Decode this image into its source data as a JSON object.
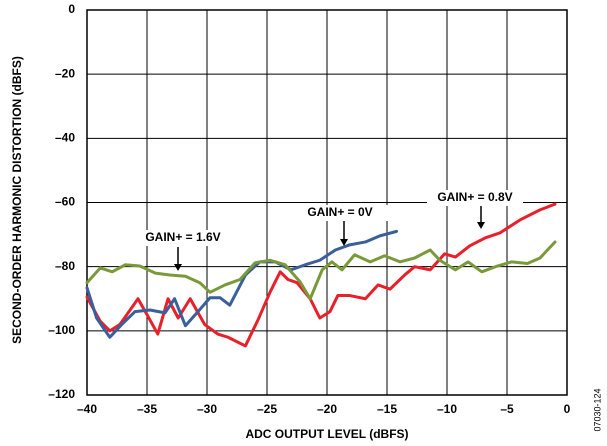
{
  "chart_data": {
    "type": "line",
    "x_label": "ADC OUTPUT LEVEL (dBFS)",
    "y_label": "SECOND-ORDER HARMONIC DISTORTION (dBFS)",
    "figure_id": "07030-124",
    "xlim": [
      -40,
      0
    ],
    "ylim": [
      -120,
      0
    ],
    "xticks": [
      {
        "value": -40,
        "label": "–40"
      },
      {
        "value": -35,
        "label": "–35"
      },
      {
        "value": -30,
        "label": "–30"
      },
      {
        "value": -25,
        "label": "–25"
      },
      {
        "value": -20,
        "label": "–20"
      },
      {
        "value": -15,
        "label": "–15"
      },
      {
        "value": -10,
        "label": "–10"
      },
      {
        "value": -5,
        "label": "–5"
      },
      0
    ],
    "yticks": [
      0,
      {
        "value": -20,
        "label": "–20"
      },
      {
        "value": -40,
        "label": "–40"
      },
      {
        "value": -60,
        "label": "–60"
      },
      {
        "value": -80,
        "label": "–80"
      },
      {
        "value": -100,
        "label": "–100"
      },
      {
        "value": -120,
        "label": "–120"
      }
    ],
    "grid": true,
    "series": [
      {
        "name": "GAIN+ = 0.8V",
        "color": "#e8202a",
        "x": [
          -40,
          -38.9,
          -38.1,
          -37.25,
          -35.75,
          -34.9,
          -34.1,
          -33.25,
          -32.4,
          -31.4,
          -30.2,
          -29.1,
          -28.25,
          -26.8,
          -25.75,
          -24.75,
          -23.9,
          -23.25,
          -22.5,
          -21.4,
          -20.6,
          -19.75,
          -19.1,
          -18.1,
          -16.8,
          -15.75,
          -14.75,
          -13.5,
          -12.7,
          -11.4,
          -10.2,
          -9.3,
          -8.1,
          -6.8,
          -5.6,
          -3.9,
          -2.25,
          -1
        ],
        "values": [
          -89.5,
          -97,
          -100,
          -98,
          -90,
          -95.6,
          -101,
          -90,
          -96,
          -90,
          -98,
          -101,
          -102,
          -104.7,
          -96.6,
          -88,
          -81.6,
          -84,
          -85,
          -90,
          -96,
          -94,
          -89,
          -89,
          -90,
          -85.7,
          -87,
          -82.5,
          -80,
          -81,
          -76,
          -77,
          -73.5,
          -71,
          -69.5,
          -65.4,
          -62.3,
          -60.5
        ]
      },
      {
        "name": "GAIN+ = 0V",
        "color": "#3a5f9a",
        "x": [
          -40,
          -39.2,
          -38.1,
          -37.1,
          -36,
          -34.75,
          -33.5,
          -32.7,
          -31.8,
          -30.75,
          -29.75,
          -28.9,
          -28.1,
          -26.8,
          -25.6,
          -24.3,
          -23,
          -21.8,
          -20.6,
          -19.3,
          -18.1,
          -16.8,
          -15.6,
          -14.2
        ],
        "values": [
          -86.6,
          -96,
          -102,
          -98,
          -94,
          -93.5,
          -94.4,
          -90,
          -98.4,
          -94,
          -89.7,
          -89.7,
          -92,
          -82.6,
          -78.5,
          -78.5,
          -81,
          -79.4,
          -78,
          -74.8,
          -73.2,
          -72.3,
          -70.4,
          -69
        ]
      },
      {
        "name": "GAIN+ = 1.6V",
        "color": "#7a9a3a",
        "x": [
          -40,
          -38.9,
          -37.9,
          -36.8,
          -35.6,
          -34.3,
          -33.1,
          -31.8,
          -30.6,
          -29.75,
          -28.5,
          -27.25,
          -26,
          -24.75,
          -23.5,
          -22.25,
          -21.4,
          -20.4,
          -19.6,
          -18.75,
          -17.7,
          -16.4,
          -15.2,
          -13.9,
          -12.7,
          -11.4,
          -10.6,
          -9.3,
          -8.25,
          -7.1,
          -5.8,
          -4.6,
          -3.3,
          -2.25,
          -1
        ],
        "values": [
          -85,
          -80.4,
          -81.6,
          -79.4,
          -79.8,
          -82,
          -82.6,
          -83,
          -85,
          -88,
          -85.7,
          -84,
          -78.8,
          -78,
          -79.4,
          -84.7,
          -90,
          -81,
          -78.5,
          -81,
          -76.3,
          -78.5,
          -76.6,
          -78.5,
          -77.3,
          -74.8,
          -78,
          -81,
          -78.5,
          -81.6,
          -79.8,
          -78.5,
          -79,
          -77.3,
          -72.3
        ]
      }
    ]
  }
}
